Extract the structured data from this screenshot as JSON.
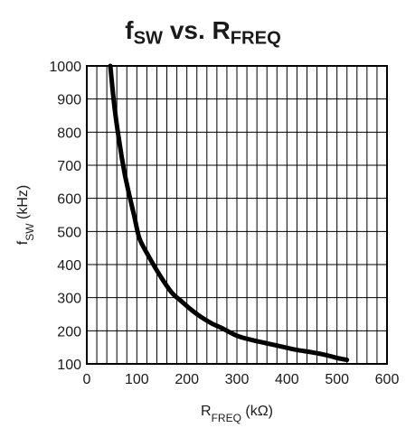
{
  "chart_data": {
    "type": "line",
    "title": {
      "main": "f",
      "main_sub": "SW",
      "mid": " vs. R",
      "mid_sub": "FREQ"
    },
    "xlabel": {
      "main": "R",
      "sub": "FREQ",
      "rest": " (kΩ)"
    },
    "ylabel": {
      "main": "f",
      "sub": "SW",
      "rest": " (kHz)"
    },
    "xlim": [
      0,
      600
    ],
    "ylim": [
      100,
      1000
    ],
    "x_ticks": [
      0,
      100,
      200,
      300,
      400,
      500,
      600
    ],
    "y_ticks": [
      100,
      200,
      300,
      400,
      500,
      600,
      700,
      800,
      900,
      1000
    ],
    "x_minor_step": 20,
    "y_minor_step": 100,
    "grid": true,
    "line_color": "#000000",
    "series": [
      {
        "x": [
          47,
          55,
          65,
          75,
          85,
          95,
          105,
          120,
          135,
          150,
          170,
          190,
          210,
          230,
          250,
          270,
          300,
          330,
          360,
          390,
          420,
          450,
          480,
          500,
          520
        ],
        "y": [
          1000,
          880,
          770,
          680,
          610,
          545,
          480,
          435,
          395,
          358,
          315,
          288,
          262,
          240,
          222,
          208,
          185,
          172,
          162,
          152,
          142,
          135,
          126,
          118,
          112
        ]
      }
    ]
  }
}
